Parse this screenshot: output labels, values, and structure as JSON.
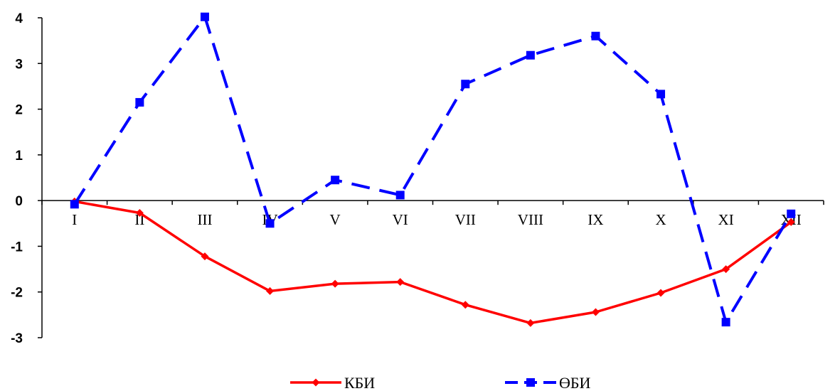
{
  "chart_data": {
    "type": "line",
    "categories": [
      "I",
      "II",
      "III",
      "IV",
      "V",
      "VI",
      "VII",
      "VIII",
      "IX",
      "X",
      "XI",
      "XII"
    ],
    "series": [
      {
        "name": "КБИ",
        "color": "#ff0000",
        "line_style": "solid",
        "marker": "diamond",
        "values": [
          -0.02,
          -0.27,
          -1.22,
          -1.98,
          -1.82,
          -1.78,
          -2.28,
          -2.68,
          -2.44,
          -2.02,
          -1.5,
          -0.47
        ]
      },
      {
        "name": "ӨБИ",
        "color": "#0000ff",
        "line_style": "dashed",
        "marker": "square",
        "values": [
          -0.08,
          2.15,
          4.02,
          -0.5,
          0.45,
          0.12,
          2.55,
          3.18,
          3.6,
          2.33,
          -2.66,
          -0.29
        ]
      }
    ],
    "ylim": [
      -3,
      4
    ],
    "yticks": [
      "4",
      "3",
      "2",
      "1",
      "0",
      "-1",
      "-2",
      "-3"
    ],
    "ytick_values": [
      4,
      3,
      2,
      1,
      0,
      -1,
      -2,
      -3
    ],
    "grid": false,
    "legend_position": "bottom",
    "title": "",
    "xlabel": "",
    "ylabel": ""
  }
}
